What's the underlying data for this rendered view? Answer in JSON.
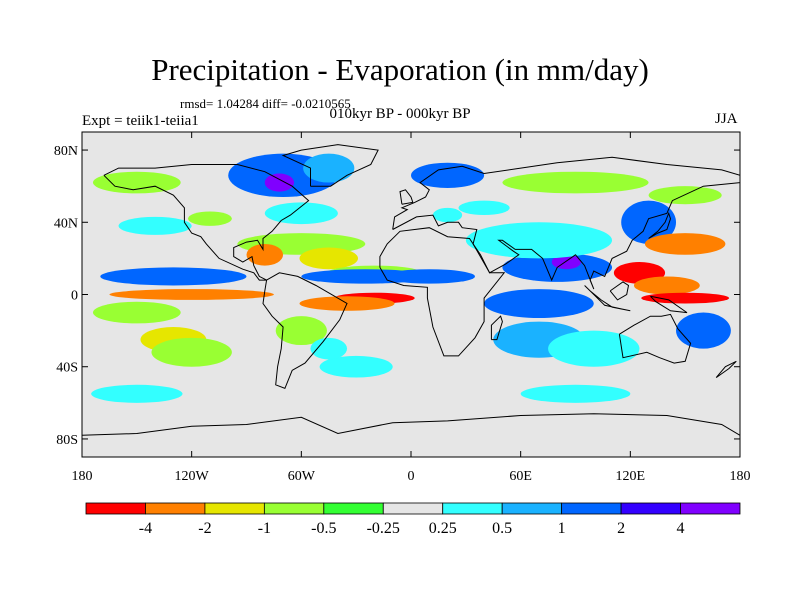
{
  "title": "Precipitation - Evaporation (in mm/day)",
  "stats": "rmsd= 1.04284 diff= -0.0210565",
  "subtitle": "010kyr BP - 000kyr BP",
  "expt_label": "Expt = teiik1-teiia1",
  "season": "JJA",
  "map": {
    "lon_range": [
      -180,
      180
    ],
    "lat_range": [
      -90,
      90
    ],
    "projection": "cylindrical equidistant",
    "lat_ticks": [
      {
        "value": 80,
        "label": "80N"
      },
      {
        "value": 40,
        "label": "40N"
      },
      {
        "value": 0,
        "label": "0"
      },
      {
        "value": -40,
        "label": "40S"
      },
      {
        "value": -80,
        "label": "80S"
      }
    ],
    "lon_ticks": [
      {
        "value": -180,
        "label": "180"
      },
      {
        "value": -120,
        "label": "120W"
      },
      {
        "value": -60,
        "label": "60W"
      },
      {
        "value": 0,
        "label": "0"
      },
      {
        "value": 60,
        "label": "60E"
      },
      {
        "value": 120,
        "label": "120E"
      },
      {
        "value": 180,
        "label": "180"
      }
    ],
    "background_color": "#e6e6e6",
    "features": [
      {
        "level": "blue",
        "lon": -70,
        "lat": 66,
        "rx": 30,
        "ry": 12
      },
      {
        "level": "purple",
        "lon": -72,
        "lat": 62,
        "rx": 8,
        "ry": 5
      },
      {
        "level": "lightblue",
        "lon": -45,
        "lat": 70,
        "rx": 14,
        "ry": 8
      },
      {
        "level": "blue",
        "lon": 20,
        "lat": 66,
        "rx": 20,
        "ry": 7
      },
      {
        "level": "green",
        "lon": -150,
        "lat": 62,
        "rx": 24,
        "ry": 6
      },
      {
        "level": "green",
        "lon": 90,
        "lat": 62,
        "rx": 40,
        "ry": 6
      },
      {
        "level": "green",
        "lon": 150,
        "lat": 55,
        "rx": 20,
        "ry": 5
      },
      {
        "level": "cyan",
        "lon": -60,
        "lat": 45,
        "rx": 20,
        "ry": 6
      },
      {
        "level": "cyan",
        "lon": -140,
        "lat": 38,
        "rx": 20,
        "ry": 5
      },
      {
        "level": "cyan",
        "lon": 40,
        "lat": 48,
        "rx": 14,
        "ry": 4
      },
      {
        "level": "green",
        "lon": -110,
        "lat": 42,
        "rx": 12,
        "ry": 4
      },
      {
        "level": "cyan",
        "lon": 20,
        "lat": 44,
        "rx": 8,
        "ry": 4
      },
      {
        "level": "green",
        "lon": -60,
        "lat": 28,
        "rx": 35,
        "ry": 6
      },
      {
        "level": "orange",
        "lon": -80,
        "lat": 22,
        "rx": 10,
        "ry": 6
      },
      {
        "level": "yellow",
        "lon": -45,
        "lat": 20,
        "rx": 16,
        "ry": 6
      },
      {
        "level": "green",
        "lon": -20,
        "lat": 12,
        "rx": 26,
        "ry": 4
      },
      {
        "level": "blue",
        "lon": -130,
        "lat": 10,
        "rx": 40,
        "ry": 5
      },
      {
        "level": "blue",
        "lon": -25,
        "lat": 10,
        "rx": 35,
        "ry": 4
      },
      {
        "level": "blue",
        "lon": 10,
        "lat": 10,
        "rx": 25,
        "ry": 4
      },
      {
        "level": "blue",
        "lon": 80,
        "lat": 15,
        "rx": 30,
        "ry": 8
      },
      {
        "level": "purple",
        "lon": 85,
        "lat": 18,
        "rx": 8,
        "ry": 4
      },
      {
        "level": "cyan",
        "lon": 70,
        "lat": 30,
        "rx": 40,
        "ry": 10
      },
      {
        "level": "blue",
        "lon": 130,
        "lat": 40,
        "rx": 15,
        "ry": 12
      },
      {
        "level": "orange",
        "lon": 150,
        "lat": 28,
        "rx": 22,
        "ry": 6
      },
      {
        "level": "red",
        "lon": 125,
        "lat": 12,
        "rx": 14,
        "ry": 6
      },
      {
        "level": "orange",
        "lon": 140,
        "lat": 5,
        "rx": 18,
        "ry": 5
      },
      {
        "level": "red",
        "lon": 150,
        "lat": -2,
        "rx": 24,
        "ry": 3
      },
      {
        "level": "orange",
        "lon": -120,
        "lat": 0,
        "rx": 45,
        "ry": 3
      },
      {
        "level": "red",
        "lon": -20,
        "lat": -2,
        "rx": 22,
        "ry": 3
      },
      {
        "level": "orange",
        "lon": -35,
        "lat": -5,
        "rx": 26,
        "ry": 4
      },
      {
        "level": "green",
        "lon": -150,
        "lat": -10,
        "rx": 24,
        "ry": 6
      },
      {
        "level": "yellow",
        "lon": -130,
        "lat": -25,
        "rx": 18,
        "ry": 7
      },
      {
        "level": "green",
        "lon": -120,
        "lat": -32,
        "rx": 22,
        "ry": 8
      },
      {
        "level": "blue",
        "lon": 70,
        "lat": -5,
        "rx": 30,
        "ry": 8
      },
      {
        "level": "lightblue",
        "lon": 70,
        "lat": -25,
        "rx": 25,
        "ry": 10
      },
      {
        "level": "cyan",
        "lon": 100,
        "lat": -30,
        "rx": 25,
        "ry": 10
      },
      {
        "level": "blue",
        "lon": 160,
        "lat": -20,
        "rx": 15,
        "ry": 10
      },
      {
        "level": "cyan",
        "lon": -30,
        "lat": -40,
        "rx": 20,
        "ry": 6
      },
      {
        "level": "cyan",
        "lon": -150,
        "lat": -55,
        "rx": 25,
        "ry": 5
      },
      {
        "level": "cyan",
        "lon": 90,
        "lat": -55,
        "rx": 30,
        "ry": 5
      },
      {
        "level": "green",
        "lon": -60,
        "lat": -20,
        "rx": 14,
        "ry": 8
      },
      {
        "level": "cyan",
        "lon": -45,
        "lat": -30,
        "rx": 10,
        "ry": 6
      }
    ]
  },
  "colorbar": {
    "colors": [
      "#ff0000",
      "#ff8000",
      "#e6e600",
      "#99ff33",
      "#33ff33",
      "#e6e6e6",
      "#33ffff",
      "#1ab2ff",
      "#0066ff",
      "#3300ff",
      "#8000ff"
    ],
    "labels": [
      "-4",
      "-2",
      "-1",
      "-0.5",
      "-0.25",
      "0.25",
      "0.5",
      "1",
      "2",
      "4"
    ]
  },
  "colors": {
    "red": "#ff0000",
    "orange": "#ff8000",
    "yellow": "#e6e600",
    "green": "#99ff33",
    "brightgreen": "#33ff33",
    "cyan": "#33ffff",
    "lightblue": "#1ab2ff",
    "blue": "#0066ff",
    "darkblue": "#3300ff",
    "purple": "#8000ff"
  }
}
